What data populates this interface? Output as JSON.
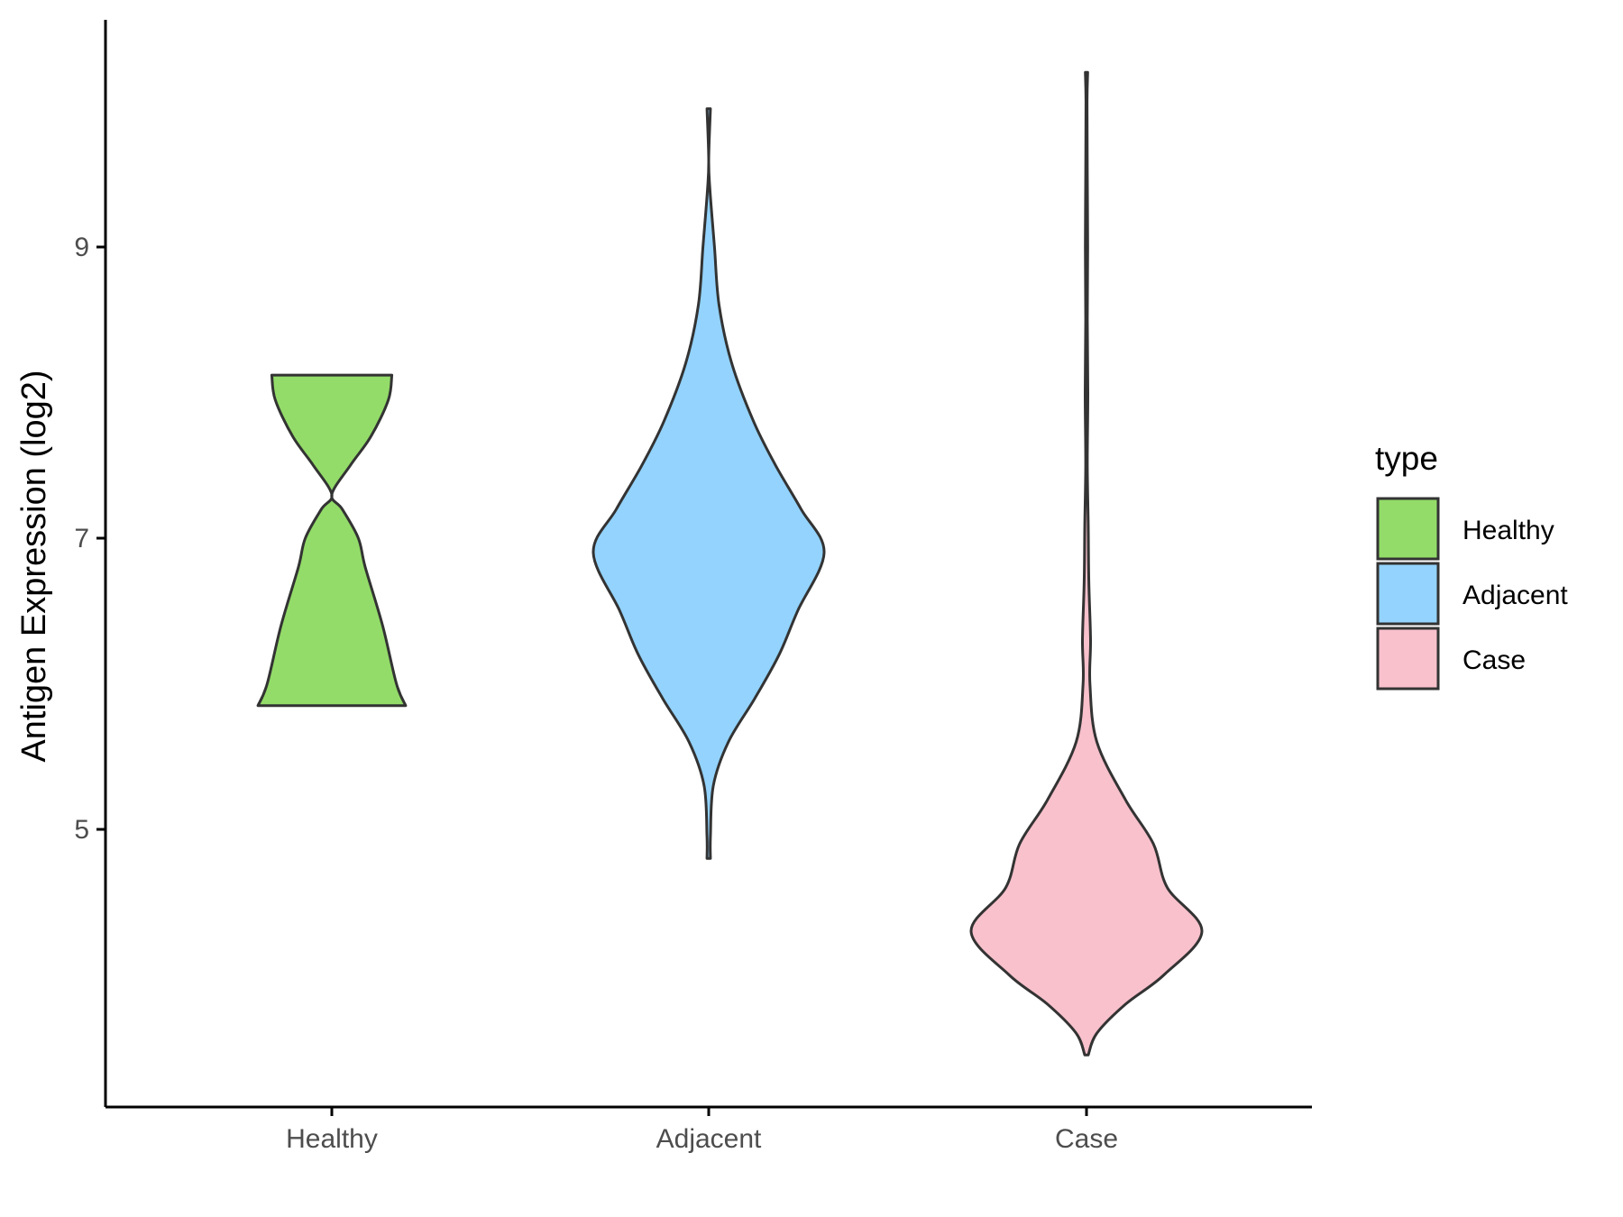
{
  "chart_data": {
    "type": "violin",
    "title": "",
    "xlabel": "",
    "ylabel": "Antigen Expression (log2)",
    "y_ticks": [
      5,
      7,
      9
    ],
    "ylim": [
      3.15,
      10.6
    ],
    "categories": [
      "Healthy",
      "Adjacent",
      "Case"
    ],
    "legend": {
      "title": "type",
      "position": "right",
      "entries": [
        "Healthy",
        "Adjacent",
        "Case"
      ]
    },
    "colors": {
      "Healthy": "#93dc69",
      "Adjacent": "#93d3fd",
      "Case": "#f8c1cc",
      "outline": "#333333"
    },
    "series": [
      {
        "name": "Healthy",
        "range": [
          5.85,
          8.12
        ],
        "profile": [
          [
            5.85,
            0.64
          ],
          [
            6.0,
            0.56
          ],
          [
            6.4,
            0.44
          ],
          [
            6.8,
            0.29
          ],
          [
            7.0,
            0.23
          ],
          [
            7.2,
            0.09
          ],
          [
            7.3,
            0.0
          ],
          [
            7.5,
            0.16
          ],
          [
            7.7,
            0.34
          ],
          [
            7.95,
            0.49
          ],
          [
            8.12,
            0.52
          ]
        ]
      },
      {
        "name": "Adjacent",
        "range": [
          4.8,
          9.95
        ],
        "profile": [
          [
            4.8,
            0.015
          ],
          [
            4.95,
            0.015
          ],
          [
            5.3,
            0.04
          ],
          [
            5.6,
            0.17
          ],
          [
            5.9,
            0.4
          ],
          [
            6.2,
            0.61
          ],
          [
            6.5,
            0.77
          ],
          [
            6.9,
            1.0
          ],
          [
            7.2,
            0.8
          ],
          [
            7.5,
            0.58
          ],
          [
            7.8,
            0.39
          ],
          [
            8.2,
            0.2
          ],
          [
            8.6,
            0.09
          ],
          [
            9.0,
            0.05
          ],
          [
            9.4,
            0.01
          ],
          [
            9.6,
            0.0
          ],
          [
            9.95,
            0.015
          ]
        ]
      },
      {
        "name": "Case",
        "range": [
          3.45,
          10.2
        ],
        "profile": [
          [
            3.45,
            0.015
          ],
          [
            3.6,
            0.09
          ],
          [
            3.8,
            0.34
          ],
          [
            4.0,
            0.67
          ],
          [
            4.3,
            1.0
          ],
          [
            4.6,
            0.7
          ],
          [
            4.9,
            0.58
          ],
          [
            5.2,
            0.34
          ],
          [
            5.6,
            0.09
          ],
          [
            6.0,
            0.03
          ],
          [
            6.3,
            0.035
          ],
          [
            6.7,
            0.02
          ],
          [
            7.1,
            0.015
          ],
          [
            7.5,
            0.007
          ],
          [
            8.0,
            0.012
          ],
          [
            8.5,
            0.007
          ],
          [
            9.0,
            0.01
          ],
          [
            9.5,
            0.007
          ],
          [
            10.0,
            0.005
          ],
          [
            10.2,
            0.01
          ]
        ]
      }
    ]
  }
}
